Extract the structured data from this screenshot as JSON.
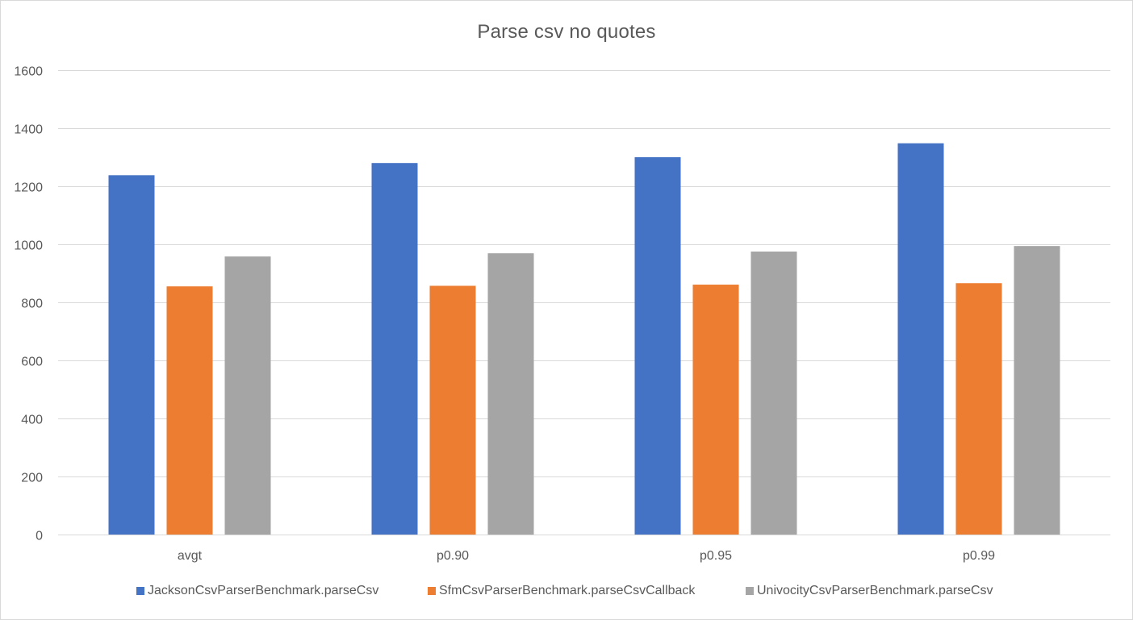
{
  "chart_data": {
    "type": "bar",
    "title": "Parse csv no quotes",
    "xlabel": "",
    "ylabel": "",
    "categories": [
      "avgt",
      "p0.90",
      "p0.95",
      "p0.99"
    ],
    "series": [
      {
        "name": "JacksonCsvParserBenchmark.parseCsv",
        "color": "#4472c4",
        "values": [
          1238,
          1280,
          1300,
          1348
        ]
      },
      {
        "name": "SfmCsvParserBenchmark.parseCsvCallback",
        "color": "#ed7d31",
        "values": [
          855,
          857,
          861,
          866
        ]
      },
      {
        "name": "UnivocityCsvParserBenchmark.parseCsv",
        "color": "#a5a5a5",
        "values": [
          958,
          969,
          975,
          994
        ]
      }
    ],
    "ylim": [
      0,
      1600
    ],
    "yticks": [
      0,
      200,
      400,
      600,
      800,
      1000,
      1200,
      1400,
      1600
    ],
    "grid": true,
    "legend_position": "bottom"
  }
}
